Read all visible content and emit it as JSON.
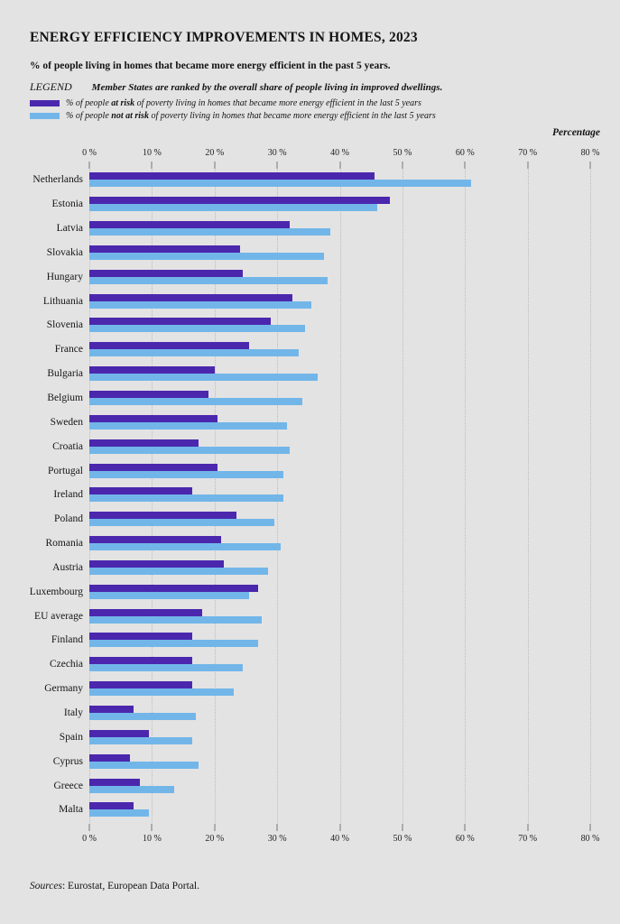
{
  "title": "ENERGY EFFICIENCY IMPROVEMENTS IN HOMES, 2023",
  "subtitle": "% of people living in homes that became more energy efficient in the past 5 years.",
  "legend": {
    "heading": "LEGEND",
    "note": "Member States are ranked by the overall share of people living in improved dwellings.",
    "items": [
      {
        "prefix": "% of people ",
        "emphasis": "at risk",
        "suffix": " of poverty living in homes that became more energy efficient in the last 5 years",
        "color": "#4b27ae"
      },
      {
        "prefix": "% of people ",
        "emphasis": "not at risk",
        "suffix": " of poverty living in homes that became more energy efficient in the last 5 years",
        "color": "#72b6e9"
      }
    ]
  },
  "axis": {
    "label": "Percentage",
    "ticks": [
      "0 %",
      "10 %",
      "20 %",
      "30 %",
      "40 %",
      "50 %",
      "60 %",
      "70 %",
      "80 %"
    ],
    "max": 80
  },
  "sources": {
    "label": "Sources",
    "text": ": Eurostat, European Data Portal."
  },
  "chart_data": {
    "type": "bar",
    "orientation": "horizontal",
    "title": "ENERGY EFFICIENCY IMPROVEMENTS IN HOMES, 2023",
    "subtitle": "% of people living in homes that became more energy efficient in the past 5 years.",
    "xlabel": "Percentage",
    "xlim": [
      0,
      80
    ],
    "grid": true,
    "legend_position": "top-left",
    "categories": [
      "Netherlands",
      "Estonia",
      "Latvia",
      "Slovakia",
      "Hungary",
      "Lithuania",
      "Slovenia",
      "France",
      "Bulgaria",
      "Belgium",
      "Sweden",
      "Croatia",
      "Portugal",
      "Ireland",
      "Poland",
      "Romania",
      "Austria",
      "Luxembourg",
      "EU average",
      "Finland",
      "Czechia",
      "Germany",
      "Italy",
      "Spain",
      "Cyprus",
      "Greece",
      "Malta"
    ],
    "series": [
      {
        "name": "% of people at risk of poverty living in homes that became more energy efficient in the last 5 years",
        "color": "#4b27ae",
        "values": [
          45.5,
          48,
          32,
          24,
          24.5,
          32.5,
          29,
          25.5,
          20,
          19,
          20.5,
          17.5,
          20.5,
          16.5,
          23.5,
          21,
          21.5,
          27,
          18,
          16.5,
          16.5,
          16.5,
          7,
          9.5,
          6.5,
          8,
          7
        ]
      },
      {
        "name": "% of people not at risk of poverty living in homes that became more energy efficient in the last 5 years",
        "color": "#72b6e9",
        "values": [
          61,
          46,
          38.5,
          37.5,
          38,
          35.5,
          34.5,
          33.5,
          36.5,
          34,
          31.5,
          32,
          31,
          31,
          29.5,
          30.5,
          28.5,
          25.5,
          27.5,
          27,
          24.5,
          23,
          17,
          16.5,
          17.5,
          13.5,
          9.5
        ]
      }
    ]
  }
}
